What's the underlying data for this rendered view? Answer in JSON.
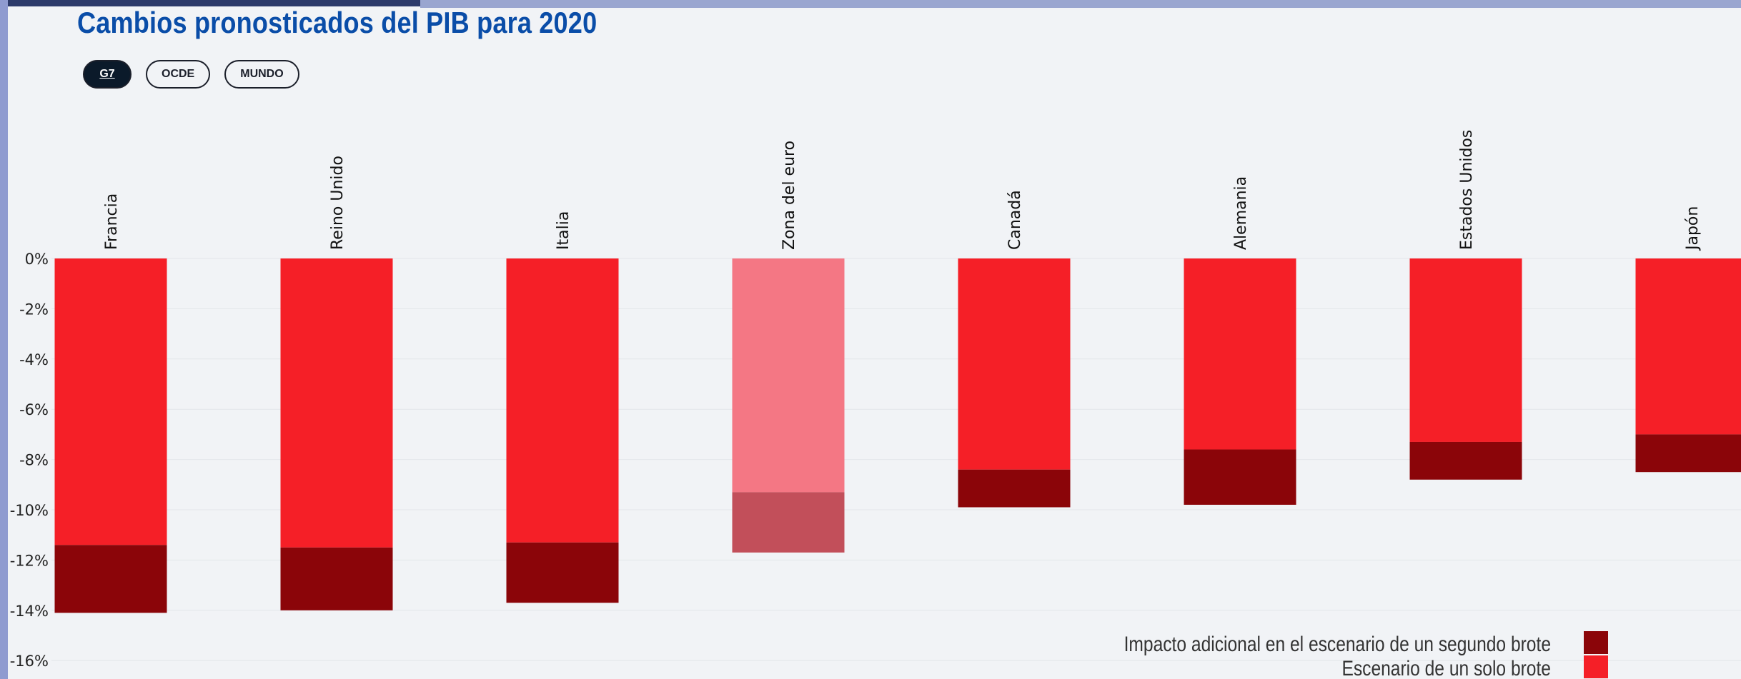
{
  "title": "Cambios pronosticados del PIB para 2020",
  "filters": [
    {
      "label": "G7",
      "active": true
    },
    {
      "label": "OCDE",
      "active": false
    },
    {
      "label": "MUNDO",
      "active": false
    }
  ],
  "colors": {
    "single": "#f51f27",
    "additional": "#8b0509",
    "single_highlight": "#f47784",
    "additional_highlight": "#c24f5a"
  },
  "chart_data": {
    "type": "bar",
    "stacked": true,
    "categories": [
      "Francia",
      "Reino Unido",
      "Italia",
      "Zona del euro",
      "Canadá",
      "Alemania",
      "Estados Unidos",
      "Japón"
    ],
    "highlighted_category": "Zona del euro",
    "series": [
      {
        "name": "Escenario de un solo brote",
        "values": [
          -11.4,
          -11.5,
          -11.3,
          -9.3,
          -8.4,
          -7.6,
          -7.3,
          -7.0
        ]
      },
      {
        "name": "Impacto adicional en el escenario de un segundo brote",
        "values": [
          -2.7,
          -2.5,
          -2.4,
          -2.4,
          -1.5,
          -2.2,
          -1.5,
          -1.5
        ]
      }
    ],
    "y_ticks": [
      "0%",
      "-2%",
      "-4%",
      "-6%",
      "-8%",
      "-10%",
      "-12%",
      "-14%",
      "-16%"
    ],
    "ylim": [
      -16,
      0
    ],
    "grid": true,
    "legend": {
      "position": "bottom-right",
      "entries": [
        {
          "label": "Impacto adicional en el escenario de un segundo brote"
        },
        {
          "label": "Escenario de un solo brote"
        }
      ]
    }
  }
}
